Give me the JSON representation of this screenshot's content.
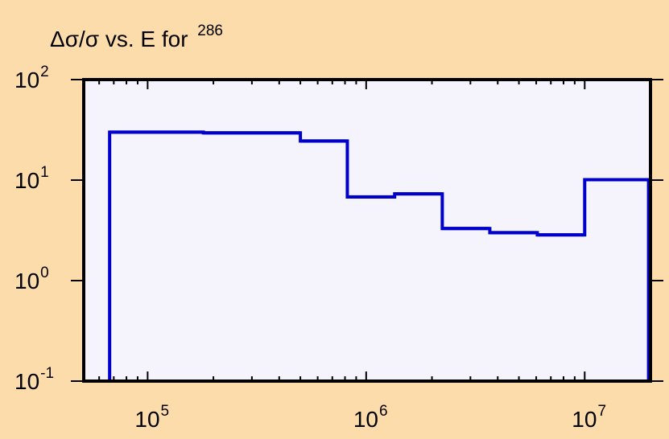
{
  "colors": {
    "background": "#fddcab",
    "plot_area": "#f5f4fd",
    "frame": "#000000",
    "series": "#0000cc"
  },
  "chart_data": {
    "type": "line",
    "title": {
      "text": "Δσ/σ vs. E for",
      "superscript": "286"
    },
    "xlabel": "",
    "ylabel": "",
    "x_scale": "log",
    "y_scale": "log",
    "xlim": [
      51000,
      20000000
    ],
    "ylim": [
      0.1,
      100
    ],
    "grid": false,
    "legend": "none",
    "x_ticks": [
      {
        "value": 100000,
        "base": "10",
        "exp": "5"
      },
      {
        "value": 1000000,
        "base": "10",
        "exp": "6"
      },
      {
        "value": 10000000,
        "base": "10",
        "exp": "7"
      }
    ],
    "y_ticks": [
      {
        "value": 0.1,
        "base": "10",
        "exp": "-1"
      },
      {
        "value": 1,
        "base": "10",
        "exp": "0"
      },
      {
        "value": 10,
        "base": "10",
        "exp": "1"
      },
      {
        "value": 100,
        "base": "10",
        "exp": "2"
      }
    ],
    "series": [
      {
        "style": "step-histogram",
        "bins": [
          {
            "x0": 67000,
            "x1": 180000,
            "y": 30
          },
          {
            "x0": 180000,
            "x1": 300000,
            "y": 29.5
          },
          {
            "x0": 300000,
            "x1": 500000,
            "y": 29.5
          },
          {
            "x0": 500000,
            "x1": 820000,
            "y": 24.5
          },
          {
            "x0": 820000,
            "x1": 1350000,
            "y": 6.8
          },
          {
            "x0": 1350000,
            "x1": 2230000,
            "y": 7.3
          },
          {
            "x0": 2230000,
            "x1": 3680000,
            "y": 3.3
          },
          {
            "x0": 3680000,
            "x1": 6070000,
            "y": 3.0
          },
          {
            "x0": 6070000,
            "x1": 10000000,
            "y": 2.85
          },
          {
            "x0": 10000000,
            "x1": 19600000,
            "y": 10.1
          }
        ]
      }
    ]
  }
}
